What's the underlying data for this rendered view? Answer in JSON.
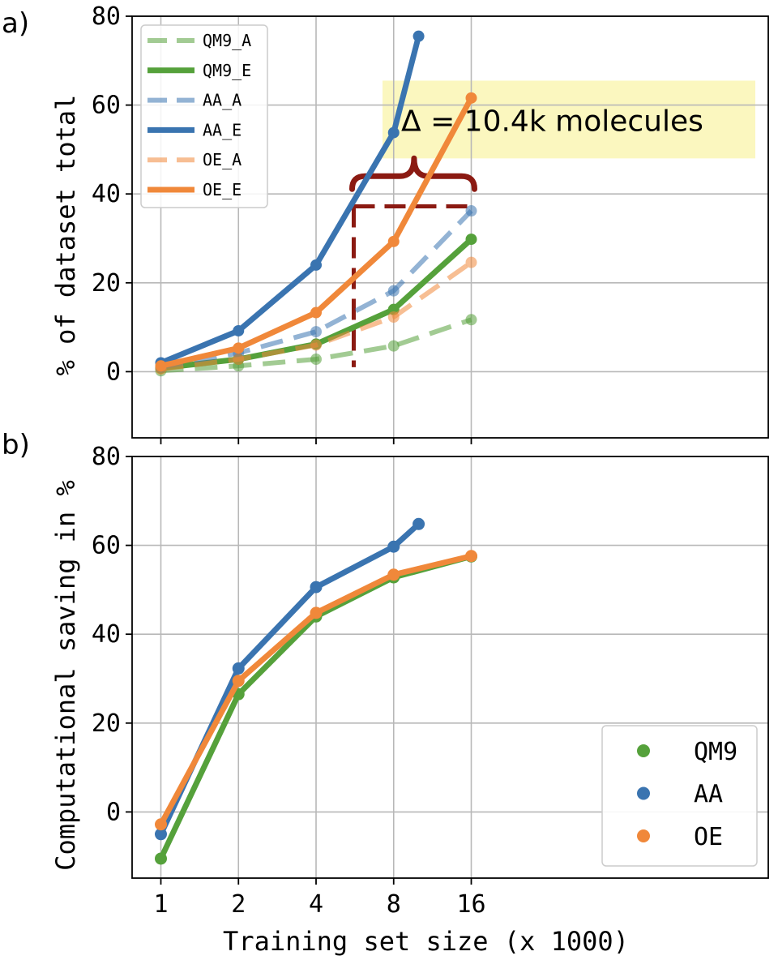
{
  "colors": {
    "green": "#55a13b",
    "blue": "#3a74b0",
    "orange": "#f0883a",
    "annotation": "#8b1a12",
    "highlight": "#fbf7bf"
  },
  "chart_data": [
    {
      "panel_label": "a)",
      "type": "line",
      "ylabel": "% of dataset total",
      "xlabel": "",
      "ylim": [
        -15,
        80
      ],
      "yticks": [
        0,
        20,
        40,
        60,
        80
      ],
      "xticks": [
        1,
        2,
        4,
        8,
        16
      ],
      "grid": true,
      "legend_position": "top-left",
      "series": [
        {
          "name": "QM9_A",
          "color": "green",
          "dashed": true,
          "x": [
            1,
            2,
            4,
            8,
            16
          ],
          "y": [
            0.2,
            1.3,
            2.8,
            5.8,
            11.7
          ]
        },
        {
          "name": "QM9_E",
          "color": "green",
          "dashed": false,
          "x": [
            1,
            2,
            4,
            8,
            16
          ],
          "y": [
            0.8,
            2.8,
            6.2,
            14.0,
            29.8
          ]
        },
        {
          "name": "AA_A",
          "color": "blue",
          "dashed": true,
          "x": [
            1,
            2,
            4,
            8,
            16
          ],
          "y": [
            1.0,
            4.2,
            9.0,
            18.2,
            36.2
          ]
        },
        {
          "name": "AA_E",
          "color": "blue",
          "dashed": false,
          "x": [
            1,
            2,
            4,
            8,
            10
          ],
          "y": [
            2.0,
            9.2,
            24.0,
            53.8,
            75.5
          ]
        },
        {
          "name": "OE_A",
          "color": "orange",
          "dashed": true,
          "x": [
            1,
            2,
            4,
            8,
            16
          ],
          "y": [
            0.6,
            2.8,
            6.0,
            12.3,
            24.6
          ]
        },
        {
          "name": "OE_E",
          "color": "orange",
          "dashed": false,
          "x": [
            1,
            2,
            4,
            8,
            16
          ],
          "y": [
            1.3,
            5.3,
            13.3,
            29.3,
            61.6
          ]
        }
      ],
      "annotations": {
        "delta_text": "Δ = 10.4k molecules",
        "delta_x_start": 5.6,
        "delta_x_end": 16,
        "delta_level": 37.2,
        "brace_level": 44,
        "brace_mid": 9.6
      }
    },
    {
      "panel_label": "b)",
      "type": "line",
      "ylabel": "Computational saving in %",
      "xlabel": "Training set size (x 1000)",
      "ylim": [
        -15,
        80
      ],
      "yticks": [
        0,
        20,
        40,
        60,
        80
      ],
      "xticks": [
        1,
        2,
        4,
        8,
        16
      ],
      "xticklabels": [
        "1",
        "2",
        "4",
        "8",
        "16"
      ],
      "grid": true,
      "legend_position": "bottom-right",
      "series": [
        {
          "name": "QM9",
          "color": "green",
          "x": [
            1,
            2,
            4,
            8,
            16
          ],
          "y": [
            -10.5,
            26.5,
            44.0,
            52.8,
            57.5
          ]
        },
        {
          "name": "AA",
          "color": "blue",
          "x": [
            1,
            2,
            4,
            8,
            10
          ],
          "y": [
            -5.0,
            32.3,
            50.6,
            59.7,
            64.8
          ]
        },
        {
          "name": "OE",
          "color": "orange",
          "x": [
            1,
            2,
            4,
            8,
            16
          ],
          "y": [
            -2.8,
            29.5,
            44.8,
            53.4,
            57.6
          ]
        }
      ]
    }
  ]
}
